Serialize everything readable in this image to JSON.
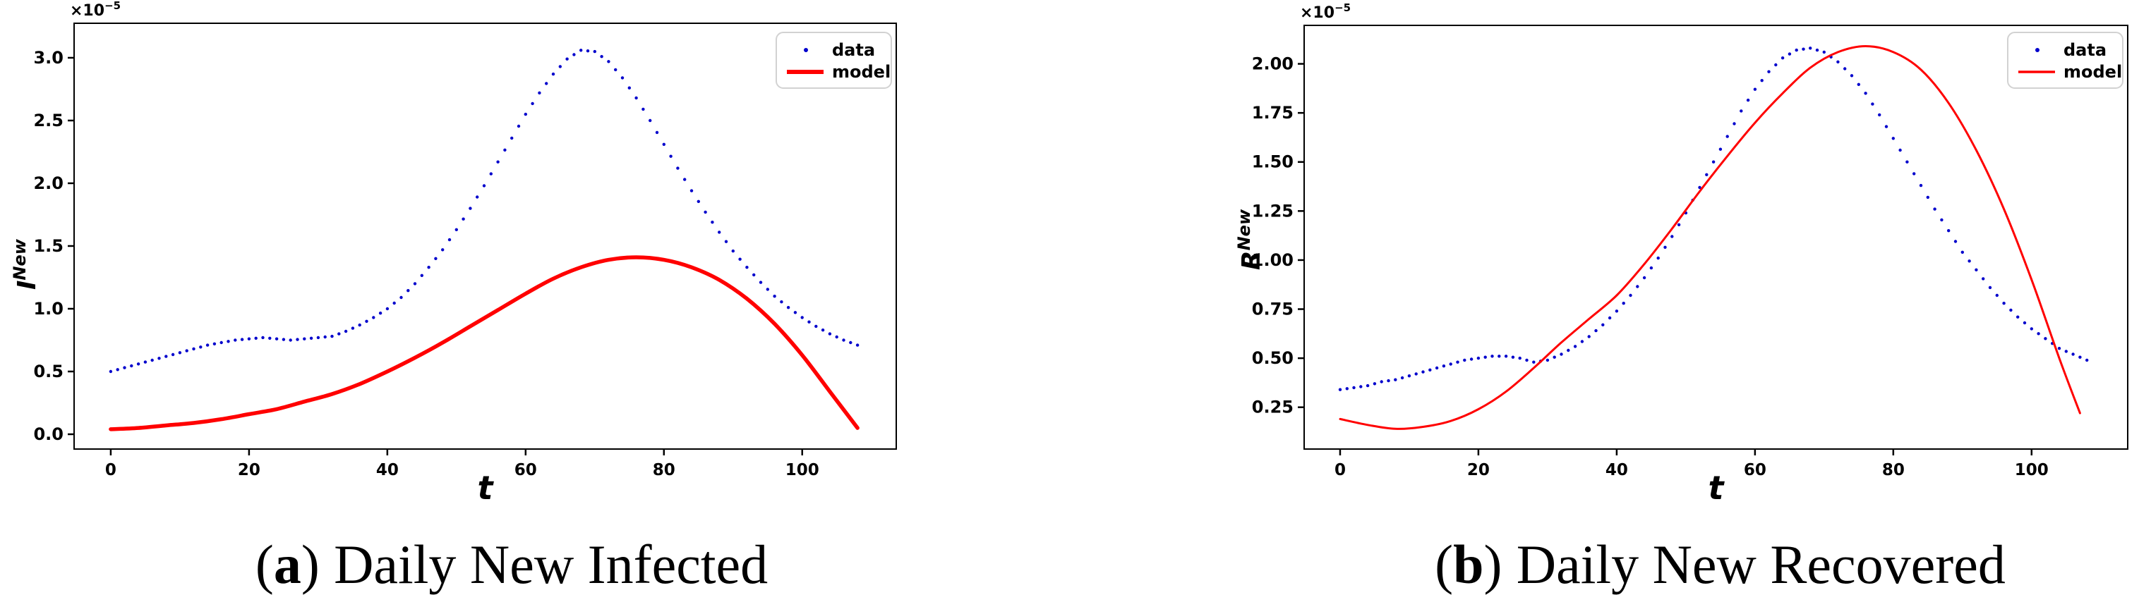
{
  "page": {
    "background": "#ffffff"
  },
  "colors": {
    "data_series": "#0000cc",
    "model_series": "#ff0000",
    "axis": "#000000",
    "legend_border": "#d2d2d2"
  },
  "chart_data": [
    {
      "id": "daily-new-infected",
      "type": "line+scatter",
      "caption": {
        "open": "(",
        "marker": "a",
        "close": ")",
        "text": "Daily New Infected"
      },
      "xlabel": "t",
      "ylabel_base": "I",
      "ylabel_sup": "New",
      "offset_base": "×10",
      "offset_exp": "−5",
      "x_ticks": [
        0,
        20,
        40,
        60,
        80,
        100
      ],
      "x_tick_labels": [
        "0",
        "20",
        "40",
        "60",
        "80",
        "100"
      ],
      "y_ticks": [
        0.0,
        0.5,
        1.0,
        1.5,
        2.0,
        2.5,
        3.0
      ],
      "y_tick_labels": [
        "0.0",
        "0.5",
        "1.0",
        "1.5",
        "2.0",
        "2.5",
        "3.0"
      ],
      "xlim": [
        -5.3,
        113.6
      ],
      "ylim": [
        -0.118,
        3.275
      ],
      "legend_position": "upper right",
      "grid": false,
      "series": [
        {
          "name": "data",
          "type": "scatter",
          "color": "#0000cc",
          "marker_size": 2.2,
          "x": [
            0,
            2,
            4,
            6,
            8,
            10,
            12,
            14,
            16,
            18,
            20,
            22,
            24,
            26,
            28,
            30,
            32,
            34,
            36,
            38,
            40,
            42,
            44,
            46,
            48,
            50,
            52,
            54,
            56,
            58,
            60,
            62,
            64,
            66,
            68,
            70,
            72,
            74,
            76,
            78,
            80,
            82,
            84,
            86,
            88,
            90,
            92,
            94,
            96,
            98,
            100,
            102,
            104,
            106,
            108
          ],
          "y": [
            0.5,
            0.53,
            0.56,
            0.59,
            0.62,
            0.65,
            0.68,
            0.71,
            0.73,
            0.75,
            0.76,
            0.77,
            0.76,
            0.75,
            0.76,
            0.77,
            0.78,
            0.82,
            0.87,
            0.93,
            1.0,
            1.09,
            1.2,
            1.33,
            1.47,
            1.63,
            1.8,
            1.98,
            2.17,
            2.36,
            2.55,
            2.72,
            2.87,
            2.99,
            3.06,
            3.05,
            2.97,
            2.84,
            2.68,
            2.5,
            2.31,
            2.12,
            1.94,
            1.77,
            1.61,
            1.46,
            1.33,
            1.21,
            1.1,
            1.01,
            0.93,
            0.86,
            0.8,
            0.75,
            0.71
          ]
        },
        {
          "name": "model",
          "type": "line",
          "color": "#ff0000",
          "width": 5.5,
          "x": [
            0,
            4,
            8,
            12,
            16,
            20,
            24,
            28,
            32,
            36,
            40,
            44,
            48,
            52,
            56,
            60,
            64,
            68,
            72,
            76,
            80,
            84,
            88,
            92,
            96,
            100,
            104,
            108
          ],
          "y": [
            0.04,
            0.05,
            0.07,
            0.09,
            0.12,
            0.16,
            0.2,
            0.26,
            0.32,
            0.4,
            0.5,
            0.61,
            0.73,
            0.86,
            0.99,
            1.12,
            1.24,
            1.33,
            1.39,
            1.41,
            1.39,
            1.33,
            1.23,
            1.08,
            0.88,
            0.63,
            0.34,
            0.05
          ]
        }
      ]
    },
    {
      "id": "daily-new-recovered",
      "type": "line+scatter",
      "caption": {
        "open": "(",
        "marker": "b",
        "close": ")",
        "text": "Daily New Recovered"
      },
      "xlabel": "t",
      "ylabel_base": "R",
      "ylabel_sup": "New",
      "offset_base": "×10",
      "offset_exp": "−5",
      "x_ticks": [
        0,
        20,
        40,
        60,
        80,
        100
      ],
      "x_tick_labels": [
        "0",
        "20",
        "40",
        "60",
        "80",
        "100"
      ],
      "y_ticks": [
        0.25,
        0.5,
        0.75,
        1.0,
        1.25,
        1.5,
        1.75,
        2.0
      ],
      "y_tick_labels": [
        "0.25",
        "0.50",
        "0.75",
        "1.00",
        "1.25",
        "1.50",
        "1.75",
        "2.00"
      ],
      "xlim": [
        -5.2,
        113.9
      ],
      "ylim": [
        0.037,
        2.196
      ],
      "legend_position": "upper right",
      "grid": false,
      "series": [
        {
          "name": "data",
          "type": "scatter",
          "color": "#0000cc",
          "marker_size": 2.2,
          "x": [
            0,
            2,
            4,
            6,
            8,
            10,
            12,
            14,
            16,
            18,
            20,
            22,
            24,
            26,
            28,
            30,
            32,
            34,
            36,
            38,
            40,
            42,
            44,
            46,
            48,
            50,
            52,
            54,
            56,
            58,
            60,
            62,
            64,
            66,
            68,
            70,
            72,
            74,
            76,
            78,
            80,
            82,
            84,
            86,
            88,
            90,
            92,
            94,
            96,
            98,
            100,
            102,
            104,
            106,
            108
          ],
          "y": [
            0.34,
            0.35,
            0.36,
            0.38,
            0.39,
            0.41,
            0.43,
            0.45,
            0.47,
            0.49,
            0.5,
            0.51,
            0.51,
            0.5,
            0.48,
            0.49,
            0.52,
            0.56,
            0.61,
            0.67,
            0.74,
            0.82,
            0.91,
            1.01,
            1.12,
            1.24,
            1.37,
            1.5,
            1.63,
            1.76,
            1.87,
            1.96,
            2.03,
            2.07,
            2.08,
            2.06,
            2.01,
            1.94,
            1.85,
            1.74,
            1.62,
            1.5,
            1.38,
            1.26,
            1.15,
            1.04,
            0.95,
            0.86,
            0.78,
            0.71,
            0.65,
            0.6,
            0.55,
            0.52,
            0.49
          ]
        },
        {
          "name": "model",
          "type": "line",
          "color": "#ff0000",
          "width": 3,
          "x": [
            0,
            4,
            8,
            12,
            16,
            20,
            24,
            28,
            32,
            36,
            40,
            44,
            48,
            52,
            56,
            60,
            64,
            68,
            72,
            76,
            80,
            84,
            88,
            92,
            96,
            100,
            104,
            107
          ],
          "y": [
            0.19,
            0.16,
            0.14,
            0.15,
            0.18,
            0.24,
            0.33,
            0.45,
            0.58,
            0.7,
            0.82,
            0.98,
            1.16,
            1.35,
            1.53,
            1.7,
            1.85,
            1.98,
            2.06,
            2.09,
            2.06,
            1.97,
            1.8,
            1.56,
            1.26,
            0.9,
            0.5,
            0.22
          ]
        }
      ]
    }
  ]
}
